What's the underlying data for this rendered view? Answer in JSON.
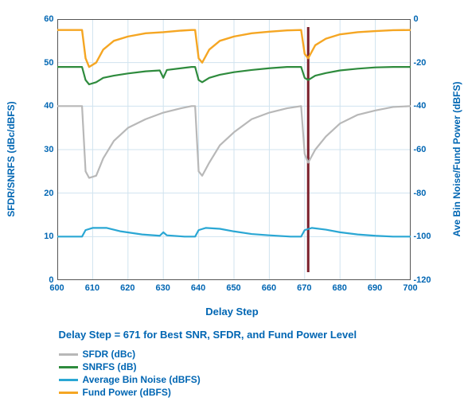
{
  "chart": {
    "type": "line",
    "background_color": "#ffffff",
    "grid_color": "#d0e3ef",
    "axis_color": "#555555",
    "marker_line": {
      "x": 671,
      "color": "#7a1f2b",
      "width": 3
    },
    "x": {
      "label": "Delay Step",
      "min": 600,
      "max": 700,
      "ticks": [
        600,
        610,
        620,
        630,
        640,
        650,
        660,
        670,
        680,
        690,
        700
      ]
    },
    "y_left": {
      "label": "SFDR/SNRFS (dBc/dBFS)",
      "min": 0,
      "max": 60,
      "ticks": [
        0,
        10,
        20,
        30,
        40,
        50,
        60
      ]
    },
    "y_right": {
      "label": "Ave Bin Noise/Fund Power (dBFS)",
      "min": -120,
      "max": 0,
      "ticks": [
        0,
        -20,
        -40,
        -60,
        -80,
        -100,
        -120
      ]
    },
    "caption": "Delay Step = 671 for Best SNR, SFDR, and Fund Power Level",
    "series": {
      "sfdr": {
        "label": "SFDR (dBc)",
        "color": "#b8b8b8",
        "width": 2.2,
        "axis": "left",
        "points": [
          [
            600,
            40
          ],
          [
            605,
            40
          ],
          [
            607,
            40
          ],
          [
            608,
            25
          ],
          [
            609,
            23.5
          ],
          [
            611,
            24
          ],
          [
            613,
            28
          ],
          [
            616,
            32
          ],
          [
            620,
            35
          ],
          [
            625,
            37
          ],
          [
            630,
            38.5
          ],
          [
            635,
            39.5
          ],
          [
            638,
            40
          ],
          [
            639,
            40
          ],
          [
            640,
            25
          ],
          [
            641,
            24
          ],
          [
            643,
            27
          ],
          [
            646,
            31
          ],
          [
            650,
            34
          ],
          [
            655,
            37
          ],
          [
            660,
            38.5
          ],
          [
            665,
            39.5
          ],
          [
            669,
            40
          ],
          [
            670,
            29
          ],
          [
            671,
            27
          ],
          [
            673,
            30
          ],
          [
            676,
            33
          ],
          [
            680,
            36
          ],
          [
            685,
            38
          ],
          [
            690,
            39
          ],
          [
            695,
            39.8
          ],
          [
            700,
            40
          ]
        ]
      },
      "snrfs": {
        "label": "SNRFS (dB)",
        "color": "#2e8b3d",
        "width": 2.2,
        "axis": "left",
        "points": [
          [
            600,
            49
          ],
          [
            605,
            49
          ],
          [
            607,
            49
          ],
          [
            608,
            46
          ],
          [
            609,
            45
          ],
          [
            611,
            45.5
          ],
          [
            613,
            46.5
          ],
          [
            616,
            47
          ],
          [
            620,
            47.5
          ],
          [
            625,
            48
          ],
          [
            629,
            48.2
          ],
          [
            630,
            46.5
          ],
          [
            631,
            48.3
          ],
          [
            635,
            48.7
          ],
          [
            638,
            49
          ],
          [
            639,
            49
          ],
          [
            640,
            46
          ],
          [
            641,
            45.5
          ],
          [
            643,
            46.5
          ],
          [
            646,
            47.2
          ],
          [
            650,
            47.8
          ],
          [
            655,
            48.3
          ],
          [
            660,
            48.7
          ],
          [
            665,
            49
          ],
          [
            669,
            49
          ],
          [
            670,
            46.5
          ],
          [
            671,
            46
          ],
          [
            673,
            47
          ],
          [
            676,
            47.6
          ],
          [
            680,
            48.2
          ],
          [
            685,
            48.6
          ],
          [
            690,
            48.9
          ],
          [
            695,
            49
          ],
          [
            700,
            49
          ]
        ]
      },
      "bin_noise": {
        "label": "Average Bin Noise (dBFS)",
        "color": "#2aa7d4",
        "width": 2.2,
        "axis": "left",
        "points": [
          [
            600,
            10
          ],
          [
            605,
            10
          ],
          [
            607,
            10
          ],
          [
            608,
            11.5
          ],
          [
            610,
            12
          ],
          [
            614,
            12
          ],
          [
            618,
            11.2
          ],
          [
            624,
            10.5
          ],
          [
            629,
            10.2
          ],
          [
            630,
            11
          ],
          [
            631,
            10.3
          ],
          [
            636,
            10
          ],
          [
            639,
            10
          ],
          [
            640,
            11.5
          ],
          [
            642,
            12
          ],
          [
            646,
            11.8
          ],
          [
            650,
            11.2
          ],
          [
            655,
            10.6
          ],
          [
            660,
            10.3
          ],
          [
            666,
            10
          ],
          [
            669,
            10
          ],
          [
            670,
            11.5
          ],
          [
            672,
            12
          ],
          [
            676,
            11.6
          ],
          [
            680,
            11
          ],
          [
            685,
            10.5
          ],
          [
            690,
            10.2
          ],
          [
            695,
            10
          ],
          [
            700,
            10
          ]
        ]
      },
      "fund_power": {
        "label": "Fund Power (dBFS)",
        "color": "#f5a623",
        "width": 2.4,
        "axis": "right",
        "points": [
          [
            600,
            -5
          ],
          [
            605,
            -5
          ],
          [
            607,
            -5
          ],
          [
            608,
            -18
          ],
          [
            609,
            -22
          ],
          [
            611,
            -20
          ],
          [
            613,
            -14
          ],
          [
            616,
            -10
          ],
          [
            620,
            -8
          ],
          [
            625,
            -6.5
          ],
          [
            630,
            -6
          ],
          [
            635,
            -5.3
          ],
          [
            638,
            -5
          ],
          [
            639,
            -5
          ],
          [
            640,
            -18
          ],
          [
            641,
            -20
          ],
          [
            643,
            -14
          ],
          [
            646,
            -10
          ],
          [
            650,
            -8
          ],
          [
            655,
            -6.5
          ],
          [
            660,
            -5.8
          ],
          [
            665,
            -5.2
          ],
          [
            669,
            -5
          ],
          [
            670,
            -16
          ],
          [
            671,
            -18
          ],
          [
            673,
            -12
          ],
          [
            676,
            -9
          ],
          [
            680,
            -7
          ],
          [
            685,
            -6
          ],
          [
            690,
            -5.5
          ],
          [
            695,
            -5.1
          ],
          [
            700,
            -5
          ]
        ]
      }
    },
    "legend_order": [
      "sfdr",
      "snrfs",
      "bin_noise",
      "fund_power"
    ]
  }
}
